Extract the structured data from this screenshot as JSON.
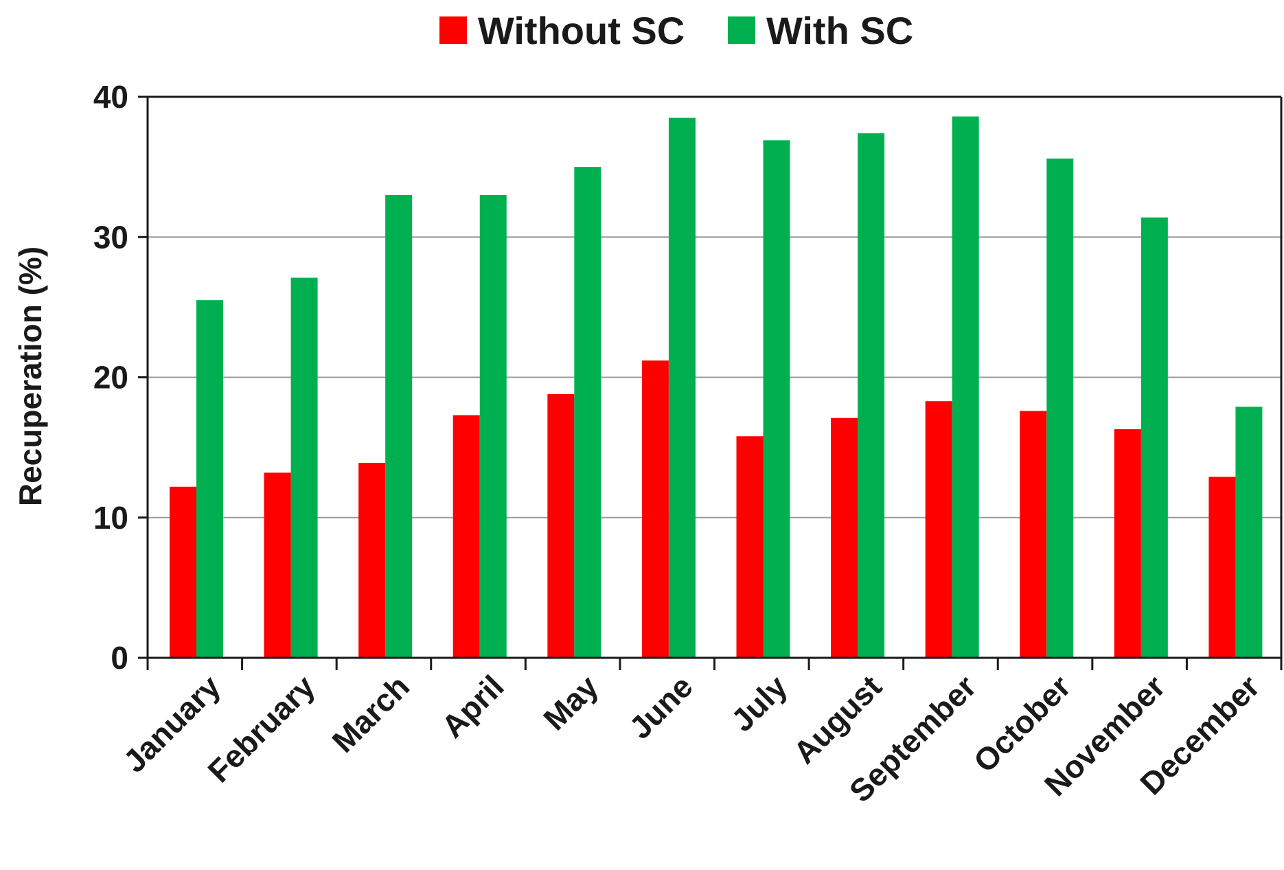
{
  "chart_data": {
    "type": "bar",
    "categories": [
      "January",
      "February",
      "March",
      "April",
      "May",
      "June",
      "July",
      "August",
      "September",
      "October",
      "November",
      "December"
    ],
    "series": [
      {
        "name": "Without SC",
        "color": "#ff0000",
        "values": [
          12.2,
          13.2,
          13.9,
          17.3,
          18.8,
          21.2,
          15.8,
          17.1,
          18.3,
          17.6,
          16.3,
          12.9
        ]
      },
      {
        "name": "With SC",
        "color": "#00b050",
        "values": [
          25.5,
          27.1,
          33.0,
          33.0,
          35.0,
          38.5,
          36.9,
          37.4,
          38.6,
          35.6,
          31.4,
          17.9
        ]
      }
    ],
    "ylabel": "Recuperation (%)",
    "xlabel": "",
    "ylim": [
      0,
      40
    ],
    "yticks": [
      0,
      10,
      20,
      30,
      40
    ],
    "grid": true,
    "legend_position": "top-center"
  }
}
